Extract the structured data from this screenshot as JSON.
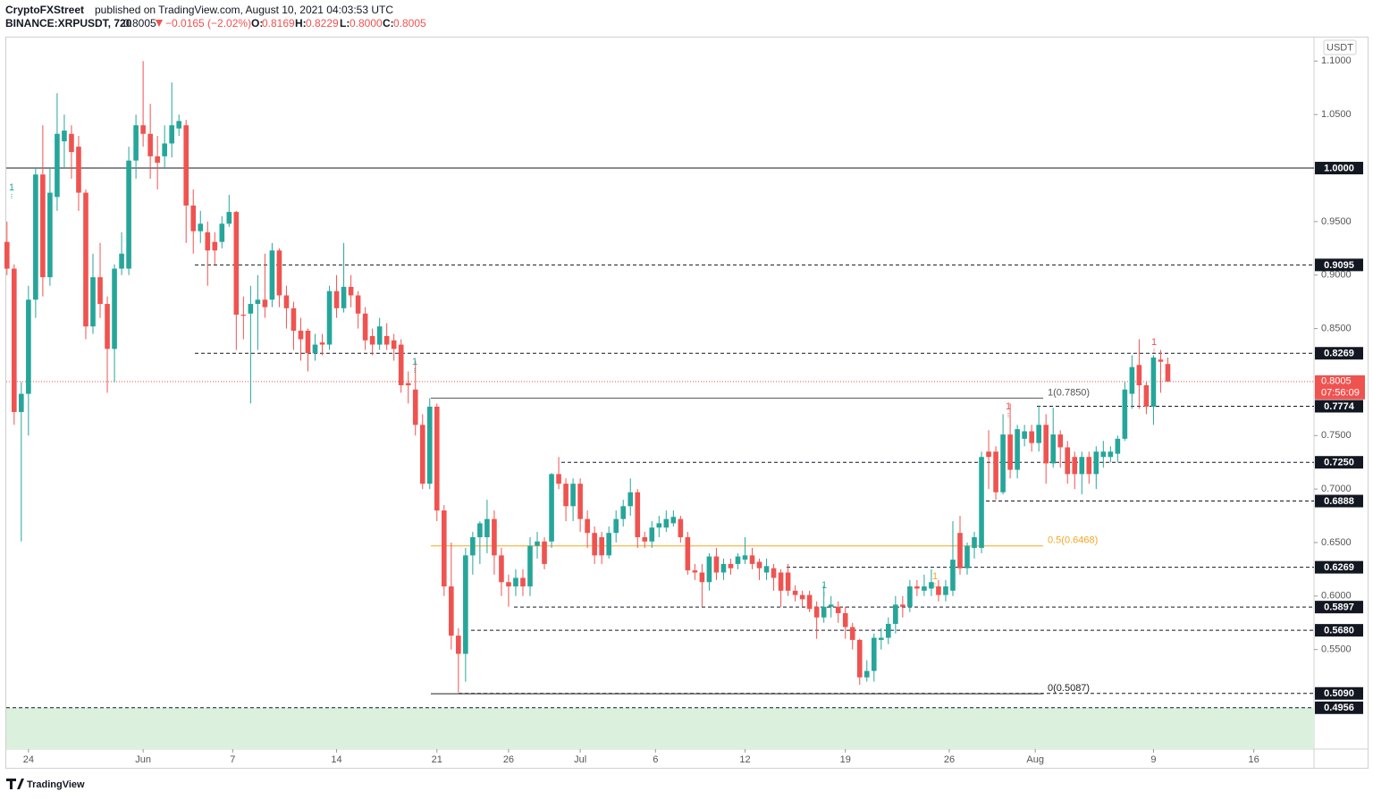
{
  "header": {
    "publisher": "CryptoFXStreet",
    "published": "published on TradingView.com, August 10, 2021 04:03:53 UTC",
    "symbol": "BINANCE:XRPUSDT, 720",
    "last": "0.8005",
    "change": "−0.0165 (−2.02%)",
    "o_label": "O:",
    "o": "0.8169",
    "h_label": "H:",
    "h": "0.8229",
    "l_label": "L:",
    "l": "0.8000",
    "c_label": "C:",
    "c": "0.8005"
  },
  "brand": "TradingView",
  "chart_data": {
    "type": "candlestick",
    "currency": "USDT",
    "up_color": "#26a69a",
    "down_color": "#ef5350",
    "open": [
      0.931,
      0.906,
      0.772,
      0.789,
      0.877,
      0.994,
      0.898,
      0.973,
      1.025,
      1.032,
      1.02,
      0.977,
      0.852,
      0.898,
      0.873,
      0.831,
      0.906,
      0.906,
      1.007,
      1.04,
      1.032,
      1.011,
      1.011,
      1.023,
      1.037,
      1.04,
      0.965,
      0.941,
      0.94,
      0.931,
      0.931,
      0.948,
      0.959,
      0.863,
      0.864,
      0.873,
      0.877,
      0.877,
      0.923,
      0.881,
      0.869,
      0.848,
      0.848,
      0.827,
      0.837,
      0.835,
      0.885,
      0.869,
      0.889,
      0.881,
      0.864,
      0.843,
      0.835,
      0.843,
      0.839,
      0.835,
      0.799,
      0.793,
      0.76,
      0.705,
      0.777,
      0.68,
      0.609,
      0.563,
      0.546,
      0.638,
      0.655,
      0.655,
      0.672,
      0.638,
      0.613,
      0.609,
      0.617,
      0.609,
      0.647,
      0.651,
      0.651,
      0.714,
      0.705,
      0.684,
      0.705,
      0.672,
      0.659,
      0.655,
      0.638,
      0.659,
      0.672,
      0.684,
      0.697,
      0.655,
      0.651,
      0.664,
      0.664,
      0.668,
      0.672,
      0.655,
      0.624,
      0.622,
      0.613,
      0.637,
      0.622,
      0.63,
      0.63,
      0.634,
      0.638,
      0.632,
      0.622,
      0.626,
      0.622,
      0.622,
      0.605,
      0.601,
      0.601,
      0.59,
      0.58,
      0.59,
      0.59,
      0.584,
      0.571,
      0.559,
      0.524,
      0.53,
      0.559,
      0.561,
      0.574,
      0.592,
      0.59,
      0.609,
      0.605,
      0.607,
      0.609,
      0.601,
      0.605,
      0.659,
      0.626,
      0.645,
      0.645,
      0.735,
      0.735,
      0.697,
      0.751,
      0.718,
      0.747,
      0.754,
      0.743,
      0.76,
      0.724,
      0.751,
      0.739,
      0.73,
      0.714,
      0.73,
      0.714,
      0.73,
      0.73,
      0.733,
      0.747,
      0.789,
      0.816,
      0.797,
      0.777,
      0.821,
      0.8169
    ],
    "high": [
      0.95,
      0.91,
      0.8,
      0.89,
      1.0,
      1.04,
      1.0,
      1.07,
      1.05,
      1.04,
      1.03,
      0.98,
      0.92,
      0.93,
      0.88,
      0.91,
      0.94,
      1.02,
      1.05,
      1.1,
      1.06,
      1.03,
      1.04,
      1.08,
      1.05,
      1.045,
      0.98,
      0.96,
      0.95,
      0.94,
      0.955,
      0.975,
      0.96,
      0.88,
      0.89,
      0.9,
      0.92,
      0.93,
      0.925,
      0.89,
      0.875,
      0.86,
      0.85,
      0.845,
      0.845,
      0.89,
      0.9,
      0.93,
      0.9,
      0.885,
      0.87,
      0.85,
      0.86,
      0.855,
      0.845,
      0.84,
      0.81,
      0.82,
      0.77,
      0.785,
      0.78,
      0.685,
      0.65,
      0.57,
      0.645,
      0.66,
      0.67,
      0.69,
      0.68,
      0.645,
      0.62,
      0.625,
      0.625,
      0.655,
      0.66,
      0.655,
      0.715,
      0.73,
      0.71,
      0.71,
      0.71,
      0.68,
      0.665,
      0.66,
      0.665,
      0.68,
      0.69,
      0.71,
      0.7,
      0.66,
      0.67,
      0.675,
      0.68,
      0.68,
      0.675,
      0.66,
      0.63,
      0.63,
      0.64,
      0.645,
      0.635,
      0.635,
      0.64,
      0.655,
      0.645,
      0.635,
      0.635,
      0.63,
      0.625,
      0.63,
      0.61,
      0.605,
      0.605,
      0.595,
      0.61,
      0.6,
      0.595,
      0.59,
      0.575,
      0.56,
      0.54,
      0.565,
      0.57,
      0.58,
      0.6,
      0.6,
      0.615,
      0.615,
      0.62,
      0.625,
      0.615,
      0.615,
      0.67,
      0.675,
      0.65,
      0.66,
      0.735,
      0.755,
      0.74,
      0.77,
      0.78,
      0.76,
      0.76,
      0.76,
      0.778,
      0.77,
      0.776,
      0.755,
      0.745,
      0.735,
      0.735,
      0.735,
      0.74,
      0.745,
      0.74,
      0.75,
      0.8,
      0.825,
      0.84,
      0.8,
      0.825,
      0.83,
      0.8229
    ],
    "low": [
      0.9,
      0.76,
      0.651,
      0.75,
      0.86,
      0.88,
      0.89,
      0.96,
      1.0,
      0.99,
      0.96,
      0.84,
      0.845,
      0.86,
      0.79,
      0.8,
      0.9,
      0.9,
      0.99,
      1.02,
      0.99,
      0.98,
      1.0,
      1.01,
      1.03,
      0.93,
      0.92,
      0.93,
      0.89,
      0.91,
      0.925,
      0.945,
      0.83,
      0.84,
      0.78,
      0.83,
      0.86,
      0.87,
      0.87,
      0.85,
      0.83,
      0.82,
      0.81,
      0.82,
      0.825,
      0.83,
      0.86,
      0.865,
      0.87,
      0.85,
      0.83,
      0.825,
      0.83,
      0.83,
      0.82,
      0.79,
      0.78,
      0.75,
      0.7,
      0.7,
      0.67,
      0.6,
      0.55,
      0.51,
      0.52,
      0.62,
      0.63,
      0.64,
      0.62,
      0.6,
      0.59,
      0.6,
      0.6,
      0.6,
      0.635,
      0.625,
      0.645,
      0.7,
      0.67,
      0.67,
      0.66,
      0.645,
      0.63,
      0.63,
      0.635,
      0.65,
      0.665,
      0.675,
      0.645,
      0.645,
      0.645,
      0.655,
      0.66,
      0.665,
      0.65,
      0.62,
      0.615,
      0.59,
      0.605,
      0.615,
      0.615,
      0.62,
      0.625,
      0.63,
      0.625,
      0.615,
      0.615,
      0.605,
      0.59,
      0.6,
      0.595,
      0.59,
      0.585,
      0.56,
      0.575,
      0.58,
      0.575,
      0.56,
      0.55,
      0.517,
      0.52,
      0.52,
      0.55,
      0.555,
      0.565,
      0.58,
      0.585,
      0.6,
      0.6,
      0.6,
      0.595,
      0.595,
      0.6,
      0.62,
      0.62,
      0.635,
      0.64,
      0.7,
      0.69,
      0.695,
      0.71,
      0.71,
      0.74,
      0.735,
      0.735,
      0.705,
      0.72,
      0.72,
      0.705,
      0.7,
      0.695,
      0.705,
      0.7,
      0.72,
      0.725,
      0.725,
      0.745,
      0.775,
      0.775,
      0.77,
      0.76,
      0.79,
      0.8
    ],
    "close": [
      0.906,
      0.772,
      0.789,
      0.877,
      0.994,
      0.898,
      0.977,
      1.032,
      1.035,
      1.015,
      0.977,
      0.852,
      0.898,
      0.873,
      0.831,
      0.906,
      0.92,
      1.007,
      1.04,
      1.032,
      1.011,
      1.005,
      1.023,
      1.04,
      1.044,
      0.965,
      0.941,
      0.948,
      0.923,
      0.923,
      0.948,
      0.959,
      0.863,
      0.862,
      0.873,
      0.877,
      0.87,
      0.923,
      0.881,
      0.869,
      0.848,
      0.84,
      0.827,
      0.835,
      0.835,
      0.885,
      0.869,
      0.889,
      0.881,
      0.864,
      0.839,
      0.835,
      0.852,
      0.835,
      0.831,
      0.797,
      0.797,
      0.76,
      0.705,
      0.777,
      0.68,
      0.609,
      0.563,
      0.546,
      0.638,
      0.655,
      0.668,
      0.672,
      0.638,
      0.613,
      0.609,
      0.617,
      0.609,
      0.647,
      0.651,
      0.63,
      0.714,
      0.705,
      0.684,
      0.705,
      0.672,
      0.659,
      0.638,
      0.638,
      0.659,
      0.672,
      0.684,
      0.697,
      0.655,
      0.651,
      0.664,
      0.668,
      0.672,
      0.674,
      0.655,
      0.624,
      0.622,
      0.613,
      0.637,
      0.622,
      0.63,
      0.626,
      0.637,
      0.638,
      0.63,
      0.626,
      0.628,
      0.617,
      0.605,
      0.605,
      0.601,
      0.597,
      0.588,
      0.58,
      0.59,
      0.592,
      0.584,
      0.571,
      0.559,
      0.524,
      0.53,
      0.561,
      0.561,
      0.574,
      0.592,
      0.59,
      0.609,
      0.607,
      0.609,
      0.613,
      0.601,
      0.609,
      0.634,
      0.626,
      0.647,
      0.655,
      0.73,
      0.73,
      0.697,
      0.751,
      0.718,
      0.756,
      0.754,
      0.743,
      0.76,
      0.724,
      0.751,
      0.739,
      0.714,
      0.714,
      0.73,
      0.714,
      0.735,
      0.735,
      0.735,
      0.747,
      0.793,
      0.814,
      0.797,
      0.777,
      0.823,
      0.819,
      0.8005
    ],
    "xlim": [
      -0.1,
      182.4
    ],
    "ylim": [
      0.457,
      1.122
    ],
    "xticks": [
      {
        "value": 3,
        "label": "24"
      },
      {
        "value": 19,
        "label": "Jun"
      },
      {
        "value": 31.5,
        "label": "7"
      },
      {
        "value": 46,
        "label": "14"
      },
      {
        "value": 60,
        "label": "21"
      },
      {
        "value": 70,
        "label": "26"
      },
      {
        "value": 80,
        "label": "Jul"
      },
      {
        "value": 90.5,
        "label": "6"
      },
      {
        "value": 103,
        "label": "12"
      },
      {
        "value": 117,
        "label": "19"
      },
      {
        "value": 131.5,
        "label": "26"
      },
      {
        "value": 143.5,
        "label": "Aug"
      },
      {
        "value": 160,
        "label": "9"
      },
      {
        "value": 174,
        "label": "16"
      }
    ],
    "yticks": [
      {
        "value": 1.1,
        "label": "1.1000"
      },
      {
        "value": 1.05,
        "label": "1.0500"
      },
      {
        "value": 0.95,
        "label": "0.9500"
      },
      {
        "value": 0.9,
        "label": "0.9000"
      },
      {
        "value": 0.85,
        "label": "0.8500"
      },
      {
        "value": 0.75,
        "label": "0.7500"
      },
      {
        "value": 0.7,
        "label": "0.7000"
      },
      {
        "value": 0.65,
        "label": "0.6500"
      },
      {
        "value": 0.6,
        "label": "0.6000"
      },
      {
        "value": 0.55,
        "label": "0.5500"
      }
    ],
    "grid": false,
    "levels": [
      {
        "value": 1.0,
        "label": "1.0000",
        "style": "solid"
      },
      {
        "value": 0.9095,
        "label": "0.9095",
        "style": "dashed"
      },
      {
        "value": 0.8269,
        "label": "0.8269",
        "style": "dashed"
      },
      {
        "value": 0.7774,
        "label": "0.7774",
        "style": "dashed"
      },
      {
        "value": 0.725,
        "label": "0.7250",
        "style": "dashed"
      },
      {
        "value": 0.6888,
        "label": "0.6888",
        "style": "dashed"
      },
      {
        "value": 0.6269,
        "label": "0.6269",
        "style": "dashed"
      },
      {
        "value": 0.5897,
        "label": "0.5897",
        "style": "dashed"
      },
      {
        "value": 0.568,
        "label": "0.5680",
        "style": "dashed"
      },
      {
        "value": 0.509,
        "label": "0.5090",
        "style": "dashed"
      },
      {
        "value": 0.4956,
        "label": "0.4956",
        "style": "dashed",
        "fill": "#dbf0dd"
      }
    ],
    "last_price": {
      "value": 0.8005,
      "label": "0.8005",
      "countdown": "07:56:09",
      "color": "#ef5350"
    },
    "fib": [
      {
        "value": 0.785,
        "label": "1(0.7850)",
        "color": "#555555"
      },
      {
        "value": 0.6468,
        "label": "0.5(0.6468)",
        "color": "#f5a623"
      },
      {
        "value": 0.5087,
        "label": "0(0.5087)",
        "color": "#222222"
      }
    ],
    "signals": [
      {
        "label": "1",
        "color": "#26a69a"
      },
      {
        "label": "1",
        "color": "#26a69a"
      },
      {
        "label": "1",
        "color": "#26a69a"
      },
      {
        "label": "1",
        "color": "#f5a623"
      },
      {
        "label": "1",
        "color": "#ef5350"
      },
      {
        "label": "1",
        "color": "#ef5350"
      }
    ]
  }
}
